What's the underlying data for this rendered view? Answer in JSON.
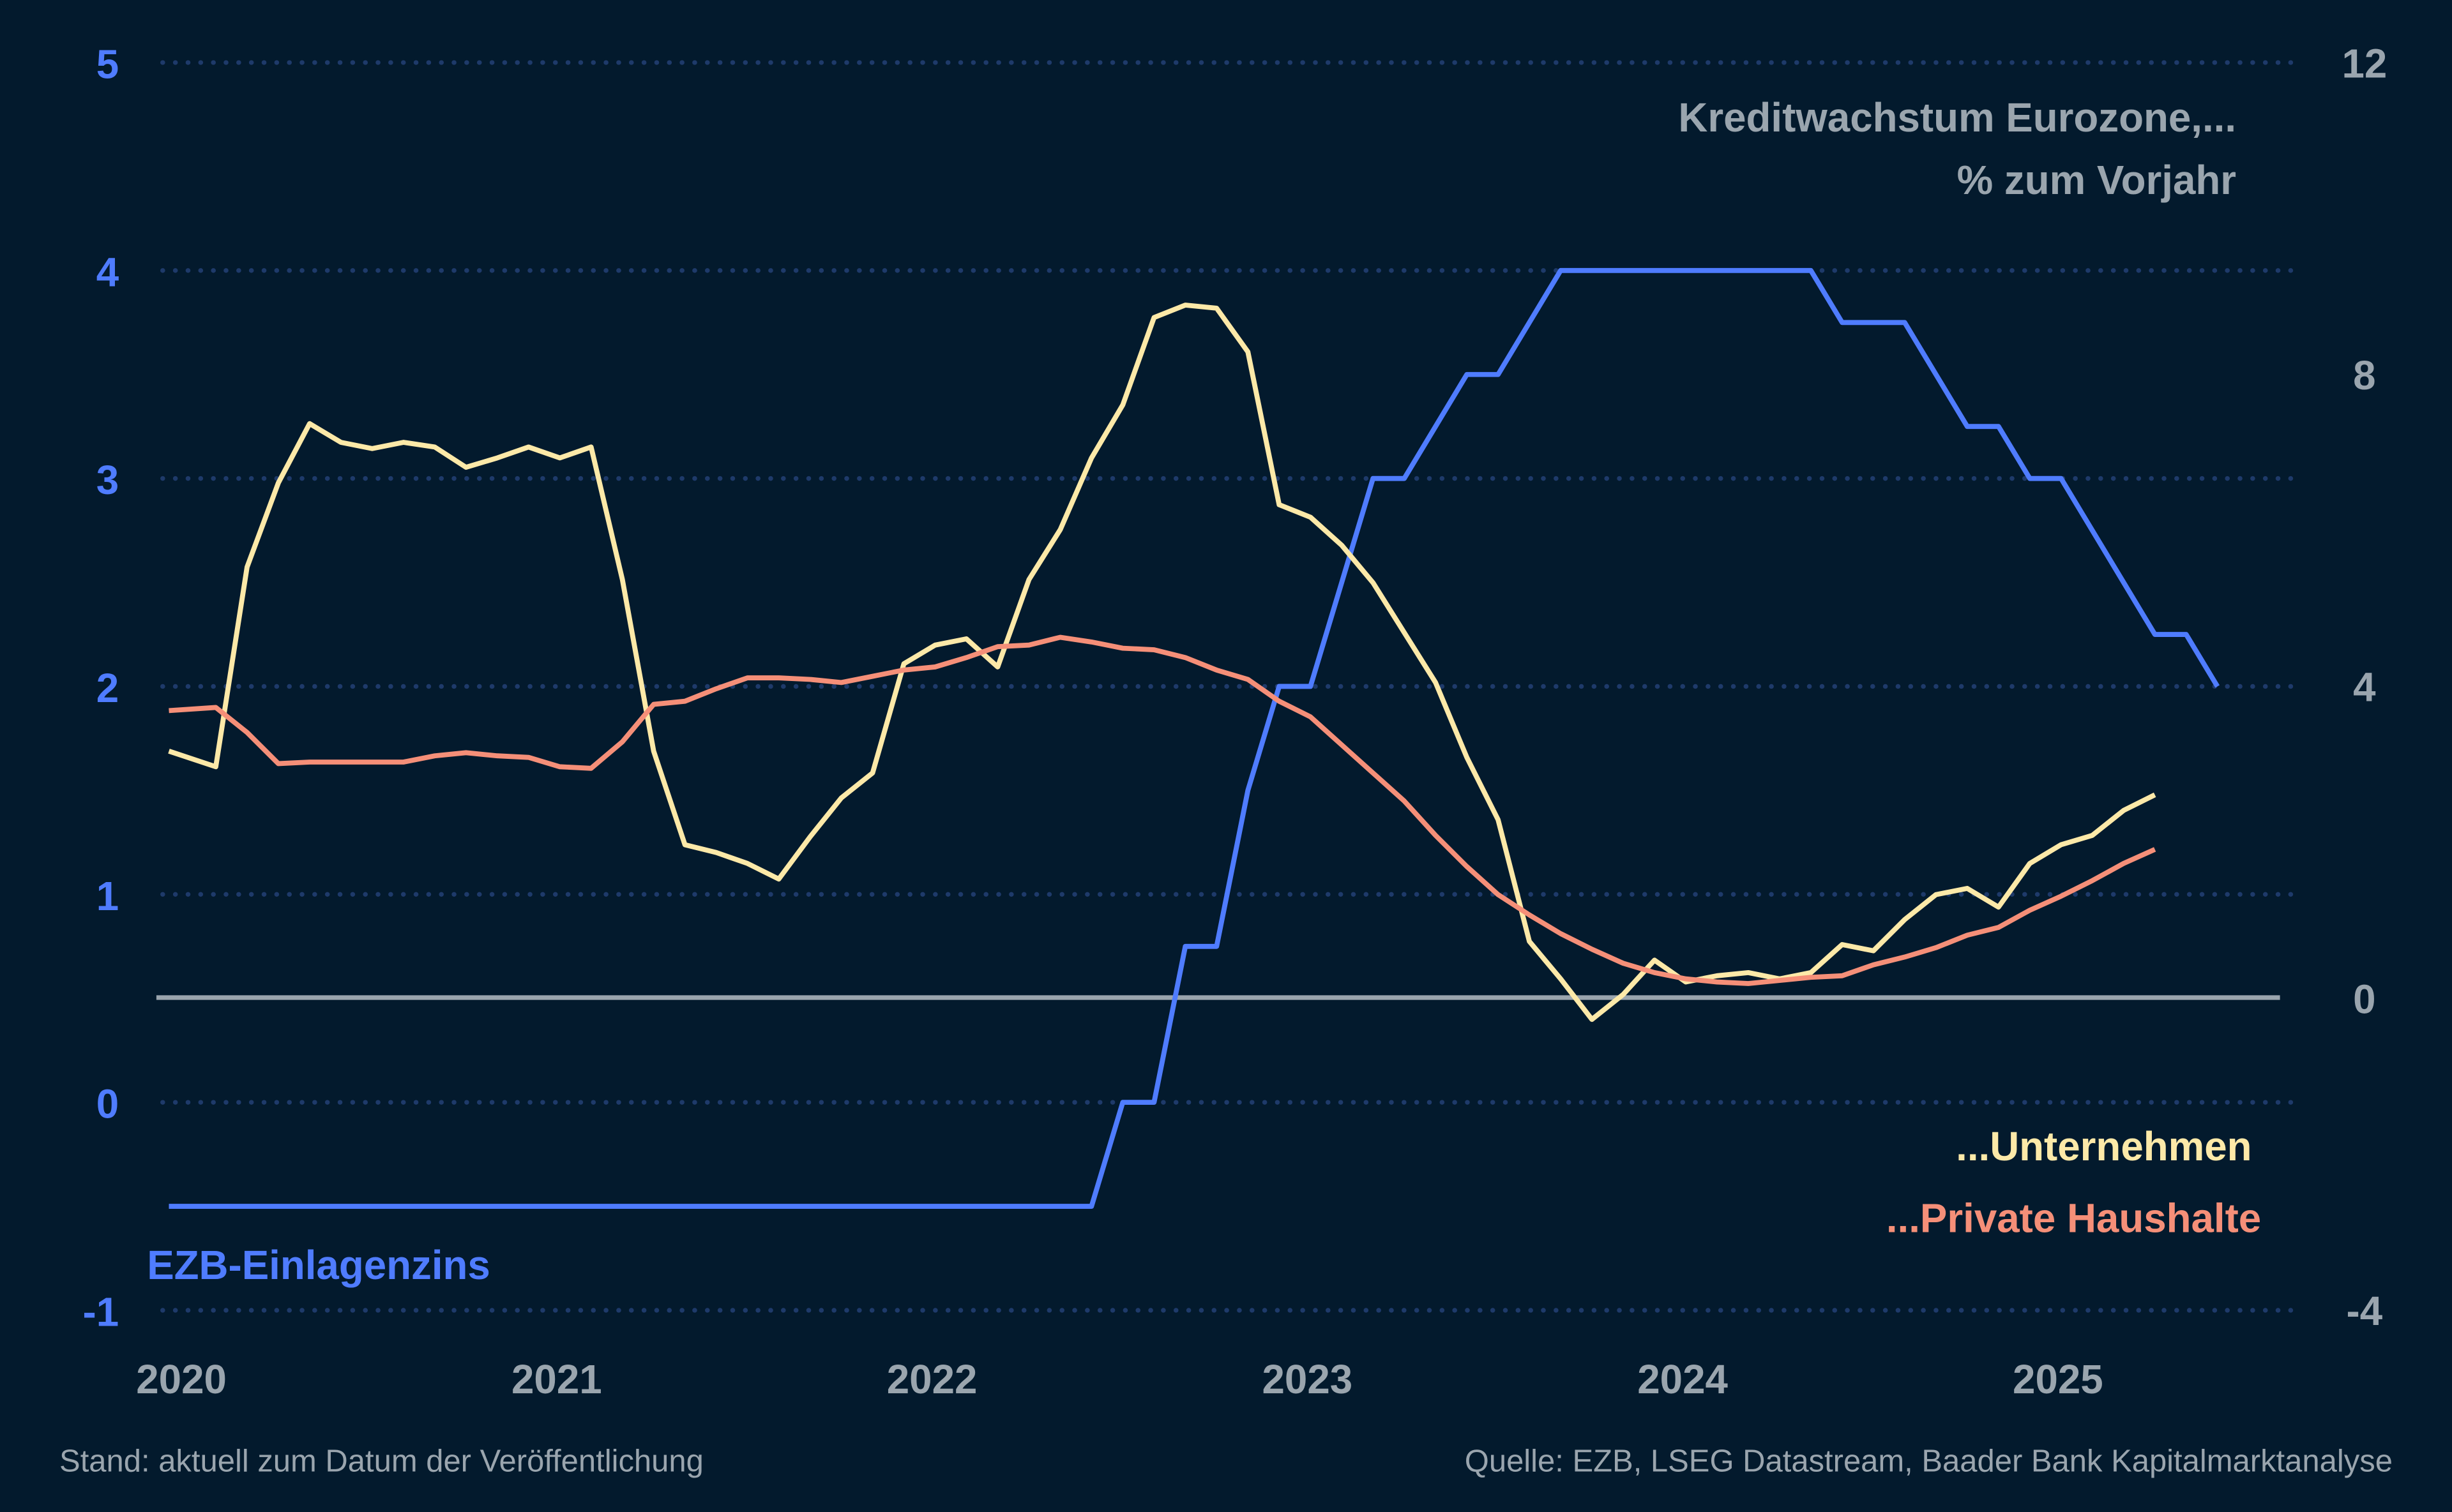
{
  "chart_data": {
    "type": "line",
    "title": "Kreditwachstum Eurozone,...",
    "subtitle": "% zum Vorjahr",
    "left_axis": {
      "ticks": [
        "5",
        "4",
        "3",
        "2",
        "1",
        "0",
        "-1"
      ],
      "range": [
        -1,
        5
      ],
      "color": "#4f7cff"
    },
    "right_axis": {
      "ticks": [
        "12",
        "8",
        "4",
        "0",
        "-4"
      ],
      "range": [
        -4,
        12
      ],
      "zero_line": true
    },
    "x_ticks": [
      "2020",
      "2021",
      "2022",
      "2023",
      "2024",
      "2025"
    ],
    "x_start": "2020-01",
    "grid": "horizontal dotted",
    "series": [
      {
        "name": "EZB-Einlagenzins",
        "axis": "left",
        "color": "#4f7cff",
        "x_end": "2025-06",
        "values": [
          -0.5,
          -0.5,
          -0.5,
          -0.5,
          -0.5,
          -0.5,
          -0.5,
          -0.5,
          -0.5,
          -0.5,
          -0.5,
          -0.5,
          -0.5,
          -0.5,
          -0.5,
          -0.5,
          -0.5,
          -0.5,
          -0.5,
          -0.5,
          -0.5,
          -0.5,
          -0.5,
          -0.5,
          -0.5,
          -0.5,
          -0.5,
          -0.5,
          -0.5,
          -0.5,
          0,
          0,
          0.75,
          0.75,
          1.5,
          2.0,
          2.0,
          2.5,
          3.0,
          3.0,
          3.25,
          3.5,
          3.5,
          3.75,
          4.0,
          4.0,
          4.0,
          4.0,
          4.0,
          4.0,
          4.0,
          4.0,
          4.0,
          3.75,
          3.75,
          3.75,
          3.5,
          3.25,
          3.25,
          3.0,
          3.0,
          2.75,
          2.5,
          2.25,
          2.25,
          2.0
        ]
      },
      {
        "name": "...Unternehmen",
        "axis": "right",
        "color": "#fde9a8",
        "x_end": "2025-04",
        "values": [
          3.16,
          2.96,
          5.52,
          6.6,
          7.36,
          7.12,
          7.04,
          7.12,
          7.06,
          6.8,
          6.92,
          7.06,
          6.92,
          7.06,
          5.36,
          3.16,
          1.96,
          1.86,
          1.72,
          1.52,
          2.06,
          2.56,
          2.88,
          4.28,
          4.52,
          4.6,
          4.24,
          5.36,
          6.0,
          6.92,
          7.6,
          8.72,
          8.88,
          8.84,
          8.28,
          6.32,
          6.16,
          5.8,
          5.32,
          4.68,
          4.04,
          3.08,
          2.28,
          0.72,
          0.24,
          -0.28,
          0.04,
          0.48,
          0.2,
          0.28,
          0.32,
          0.24,
          0.32,
          0.68,
          0.6,
          1.0,
          1.32,
          1.4,
          1.16,
          1.72,
          1.96,
          2.08,
          2.4,
          2.6
        ]
      },
      {
        "name": "...Private Haushalte",
        "axis": "right",
        "color": "#f58f78",
        "x_end": "2025-04",
        "values": [
          3.68,
          3.72,
          3.4,
          3.0,
          3.02,
          3.02,
          3.02,
          3.02,
          3.1,
          3.14,
          3.1,
          3.08,
          2.96,
          2.94,
          3.28,
          3.76,
          3.8,
          3.96,
          4.1,
          4.1,
          4.08,
          4.04,
          4.12,
          4.2,
          4.24,
          4.36,
          4.5,
          4.52,
          4.62,
          4.56,
          4.48,
          4.46,
          4.36,
          4.2,
          4.08,
          3.8,
          3.6,
          3.24,
          2.88,
          2.52,
          2.08,
          1.68,
          1.32,
          1.06,
          0.82,
          0.62,
          0.44,
          0.32,
          0.24,
          0.2,
          0.18,
          0.22,
          0.26,
          0.28,
          0.42,
          0.52,
          0.64,
          0.8,
          0.9,
          1.12,
          1.3,
          1.5,
          1.72,
          1.9
        ]
      }
    ]
  },
  "footer": {
    "left": "Stand: aktuell zum Datum der Veröffentlichung",
    "right": "Quelle: EZB, LSEG Datastream, Baader Bank Kapitalmarktanalyse"
  },
  "colors": {
    "background": "#031a2d",
    "grid": "#1e3a6a",
    "zero_line": "#9aa5ae"
  }
}
